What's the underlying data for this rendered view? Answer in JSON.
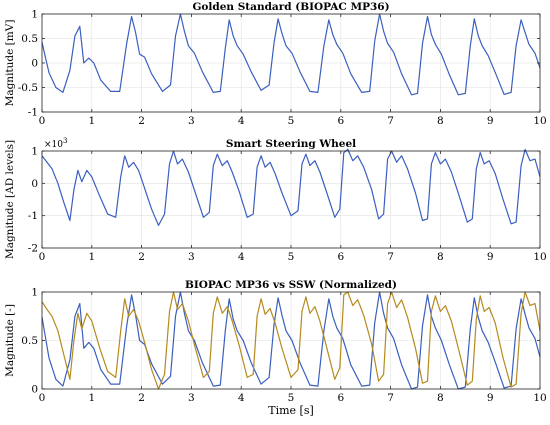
{
  "chart_data": [
    {
      "type": "line",
      "title": "Golden Standard (BIOPAC MP36)",
      "xlabel": "",
      "ylabel": "Magnitude [mV]",
      "xlim": [
        0,
        10
      ],
      "ylim": [
        -1,
        1
      ],
      "xticks": [
        0,
        1,
        2,
        3,
        4,
        5,
        6,
        7,
        8,
        9,
        10
      ],
      "yticks": [
        -1,
        -0.5,
        0,
        0.5,
        1
      ],
      "ytick_labels": [
        "-1",
        "-0.5",
        "0",
        "0.5",
        "1"
      ],
      "grid": true,
      "series": [
        {
          "color": "#3b5fc0",
          "x": [
            0.0,
            0.14,
            0.28,
            0.42,
            0.56,
            0.66,
            0.76,
            0.84,
            0.94,
            1.04,
            1.18,
            1.38,
            1.56,
            1.7,
            1.8,
            1.88,
            1.96,
            2.06,
            2.2,
            2.42,
            2.58,
            2.68,
            2.78,
            2.86,
            2.94,
            3.06,
            3.22,
            3.44,
            3.58,
            3.68,
            3.76,
            3.84,
            3.92,
            4.04,
            4.2,
            4.4,
            4.56,
            4.66,
            4.74,
            4.82,
            4.9,
            5.02,
            5.18,
            5.38,
            5.54,
            5.66,
            5.76,
            5.84,
            5.92,
            6.04,
            6.2,
            6.42,
            6.58,
            6.68,
            6.78,
            6.86,
            6.94,
            7.06,
            7.22,
            7.42,
            7.54,
            7.64,
            7.74,
            7.82,
            7.9,
            8.02,
            8.18,
            8.36,
            8.5,
            8.6,
            8.68,
            8.76,
            8.84,
            8.96,
            9.12,
            9.28,
            9.42,
            9.52,
            9.62,
            9.7,
            9.78,
            9.9,
            10.0
          ],
          "y": [
            0.42,
            -0.2,
            -0.5,
            -0.6,
            -0.15,
            0.55,
            0.75,
            0.0,
            0.1,
            0.0,
            -0.35,
            -0.58,
            -0.58,
            0.4,
            0.95,
            0.62,
            0.18,
            0.12,
            -0.22,
            -0.58,
            -0.45,
            0.55,
            1.0,
            0.65,
            0.35,
            0.2,
            -0.18,
            -0.6,
            -0.58,
            0.3,
            0.88,
            0.55,
            0.35,
            0.18,
            -0.18,
            -0.56,
            -0.45,
            0.42,
            0.9,
            0.6,
            0.35,
            0.2,
            -0.18,
            -0.58,
            -0.6,
            0.35,
            0.88,
            0.58,
            0.38,
            0.2,
            -0.22,
            -0.6,
            -0.58,
            0.45,
            1.0,
            0.65,
            0.4,
            0.22,
            -0.22,
            -0.65,
            -0.62,
            0.4,
            0.95,
            0.58,
            0.38,
            0.18,
            -0.24,
            -0.65,
            -0.62,
            0.35,
            0.9,
            0.56,
            0.35,
            0.15,
            -0.24,
            -0.64,
            -0.6,
            0.35,
            0.88,
            0.62,
            0.38,
            0.2,
            -0.1
          ]
        }
      ]
    },
    {
      "type": "line",
      "title": "Smart Steering Wheel",
      "xlabel": "",
      "ylabel": "Magnitude [AD levels]",
      "y_multiplier_label": "×10",
      "y_multiplier_exponent": "3",
      "xlim": [
        0,
        10
      ],
      "ylim": [
        -2,
        1
      ],
      "xticks": [
        0,
        1,
        2,
        3,
        4,
        5,
        6,
        7,
        8,
        9,
        10
      ],
      "yticks": [
        -2,
        -1,
        0,
        1
      ],
      "ytick_labels": [
        "-2",
        "-1",
        "0",
        "1"
      ],
      "grid": true,
      "series": [
        {
          "color": "#3b5fc0",
          "x": [
            0.0,
            0.1,
            0.2,
            0.32,
            0.44,
            0.56,
            0.64,
            0.72,
            0.8,
            0.9,
            1.0,
            1.16,
            1.32,
            1.48,
            1.58,
            1.66,
            1.74,
            1.84,
            1.94,
            2.06,
            2.2,
            2.34,
            2.46,
            2.56,
            2.64,
            2.72,
            2.82,
            2.94,
            3.08,
            3.24,
            3.36,
            3.44,
            3.52,
            3.62,
            3.72,
            3.82,
            3.96,
            4.12,
            4.24,
            4.32,
            4.4,
            4.48,
            4.58,
            4.68,
            4.82,
            5.0,
            5.14,
            5.22,
            5.3,
            5.38,
            5.48,
            5.58,
            5.72,
            5.88,
            5.98,
            6.06,
            6.14,
            6.24,
            6.34,
            6.46,
            6.62,
            6.76,
            6.86,
            6.94,
            7.02,
            7.12,
            7.22,
            7.34,
            7.5,
            7.64,
            7.74,
            7.82,
            7.9,
            8.0,
            8.1,
            8.22,
            8.38,
            8.54,
            8.64,
            8.72,
            8.8,
            8.88,
            8.98,
            9.1,
            9.26,
            9.42,
            9.52,
            9.62,
            9.7,
            9.8,
            9.9,
            10.0
          ],
          "y": [
            0.85,
            0.65,
            0.45,
            0.0,
            -0.6,
            -1.15,
            -0.2,
            0.4,
            0.05,
            0.4,
            0.2,
            -0.4,
            -0.95,
            -1.05,
            0.2,
            0.85,
            0.5,
            0.65,
            0.4,
            -0.15,
            -0.8,
            -1.3,
            -0.95,
            0.6,
            1.0,
            0.6,
            0.75,
            0.35,
            -0.3,
            -1.05,
            -0.9,
            0.55,
            0.9,
            0.55,
            0.7,
            0.35,
            -0.25,
            -1.05,
            -0.95,
            0.5,
            0.85,
            0.5,
            0.65,
            0.3,
            -0.3,
            -1.0,
            -0.85,
            0.6,
            0.9,
            0.55,
            0.7,
            0.35,
            -0.3,
            -1.05,
            -0.8,
            0.95,
            1.05,
            0.7,
            0.85,
            0.5,
            -0.2,
            -1.1,
            -0.95,
            0.75,
            1.0,
            0.65,
            0.85,
            0.45,
            -0.3,
            -1.15,
            -1.1,
            0.6,
            0.95,
            0.6,
            0.75,
            0.35,
            -0.4,
            -1.2,
            -1.1,
            0.45,
            0.95,
            0.6,
            0.7,
            0.3,
            -0.5,
            -1.25,
            -1.2,
            0.55,
            1.05,
            0.7,
            0.75,
            0.2
          ]
        }
      ]
    },
    {
      "type": "line",
      "title": "BIOPAC MP36 vs SSW (Normalized)",
      "xlabel": "Time [s]",
      "ylabel": "Magnitude [-]",
      "xlim": [
        0,
        10
      ],
      "ylim": [
        0,
        1
      ],
      "xticks": [
        0,
        1,
        2,
        3,
        4,
        5,
        6,
        7,
        8,
        9,
        10
      ],
      "yticks": [
        0,
        0.5,
        1
      ],
      "ytick_labels": [
        "0",
        "0.5",
        "1"
      ],
      "grid": true,
      "series": [
        {
          "color": "#3b5fc0",
          "x": [
            0.0,
            0.14,
            0.28,
            0.42,
            0.56,
            0.66,
            0.76,
            0.84,
            0.94,
            1.04,
            1.18,
            1.38,
            1.56,
            1.7,
            1.8,
            1.88,
            1.96,
            2.06,
            2.2,
            2.42,
            2.58,
            2.68,
            2.78,
            2.86,
            2.94,
            3.06,
            3.22,
            3.44,
            3.58,
            3.68,
            3.76,
            3.84,
            3.92,
            4.04,
            4.2,
            4.4,
            4.56,
            4.66,
            4.74,
            4.82,
            4.9,
            5.02,
            5.18,
            5.38,
            5.54,
            5.66,
            5.76,
            5.84,
            5.92,
            6.04,
            6.2,
            6.42,
            6.58,
            6.68,
            6.78,
            6.86,
            6.94,
            7.06,
            7.22,
            7.42,
            7.54,
            7.64,
            7.74,
            7.82,
            7.9,
            8.02,
            8.18,
            8.36,
            8.5,
            8.6,
            8.68,
            8.76,
            8.84,
            8.96,
            9.12,
            9.28,
            9.42,
            9.52,
            9.62,
            9.7,
            9.78,
            9.9,
            10.0
          ],
          "y": [
            0.74,
            0.32,
            0.1,
            0.03,
            0.3,
            0.75,
            0.88,
            0.42,
            0.48,
            0.42,
            0.2,
            0.05,
            0.05,
            0.65,
            0.97,
            0.76,
            0.5,
            0.46,
            0.26,
            0.05,
            0.13,
            0.75,
            1.0,
            0.78,
            0.6,
            0.5,
            0.27,
            0.03,
            0.04,
            0.6,
            0.93,
            0.72,
            0.6,
            0.5,
            0.27,
            0.05,
            0.12,
            0.67,
            0.94,
            0.76,
            0.6,
            0.5,
            0.27,
            0.04,
            0.03,
            0.6,
            0.93,
            0.75,
            0.63,
            0.52,
            0.25,
            0.03,
            0.04,
            0.68,
            1.0,
            0.78,
            0.63,
            0.52,
            0.25,
            0.0,
            0.02,
            0.65,
            0.97,
            0.75,
            0.63,
            0.5,
            0.25,
            0.0,
            0.02,
            0.62,
            0.94,
            0.74,
            0.6,
            0.48,
            0.25,
            0.01,
            0.03,
            0.62,
            0.93,
            0.77,
            0.63,
            0.52,
            0.33
          ]
        },
        {
          "color": "#b58a1e",
          "x": [
            0.0,
            0.1,
            0.2,
            0.32,
            0.44,
            0.56,
            0.64,
            0.72,
            0.8,
            0.9,
            1.0,
            1.16,
            1.32,
            1.48,
            1.58,
            1.66,
            1.74,
            1.84,
            1.94,
            2.06,
            2.2,
            2.34,
            2.46,
            2.56,
            2.64,
            2.72,
            2.82,
            2.94,
            3.08,
            3.24,
            3.36,
            3.44,
            3.52,
            3.62,
            3.72,
            3.82,
            3.96,
            4.12,
            4.24,
            4.32,
            4.4,
            4.48,
            4.58,
            4.68,
            4.82,
            5.0,
            5.14,
            5.22,
            5.3,
            5.38,
            5.48,
            5.58,
            5.72,
            5.88,
            5.98,
            6.06,
            6.14,
            6.24,
            6.34,
            6.46,
            6.62,
            6.76,
            6.86,
            6.94,
            7.02,
            7.12,
            7.22,
            7.34,
            7.5,
            7.64,
            7.74,
            7.82,
            7.9,
            8.0,
            8.1,
            8.22,
            8.38,
            8.54,
            8.64,
            8.72,
            8.8,
            8.88,
            8.98,
            9.1,
            9.26,
            9.42,
            9.52,
            9.62,
            9.7,
            9.8,
            9.9,
            10.0
          ],
          "y": [
            0.9,
            0.82,
            0.75,
            0.6,
            0.35,
            0.1,
            0.5,
            0.78,
            0.62,
            0.78,
            0.7,
            0.42,
            0.18,
            0.12,
            0.6,
            0.93,
            0.75,
            0.82,
            0.7,
            0.48,
            0.2,
            0.0,
            0.15,
            0.8,
            1.0,
            0.82,
            0.88,
            0.7,
            0.42,
            0.12,
            0.18,
            0.78,
            0.95,
            0.78,
            0.85,
            0.7,
            0.45,
            0.12,
            0.15,
            0.75,
            0.93,
            0.77,
            0.83,
            0.68,
            0.42,
            0.12,
            0.2,
            0.8,
            0.95,
            0.78,
            0.85,
            0.7,
            0.42,
            0.1,
            0.22,
            0.97,
            1.0,
            0.86,
            0.92,
            0.76,
            0.46,
            0.08,
            0.15,
            0.88,
            1.0,
            0.84,
            0.92,
            0.74,
            0.42,
            0.06,
            0.08,
            0.8,
            0.96,
            0.8,
            0.86,
            0.7,
            0.38,
            0.04,
            0.08,
            0.72,
            0.96,
            0.8,
            0.84,
            0.68,
            0.32,
            0.02,
            0.05,
            0.78,
            1.0,
            0.86,
            0.88,
            0.6
          ]
        }
      ]
    }
  ]
}
